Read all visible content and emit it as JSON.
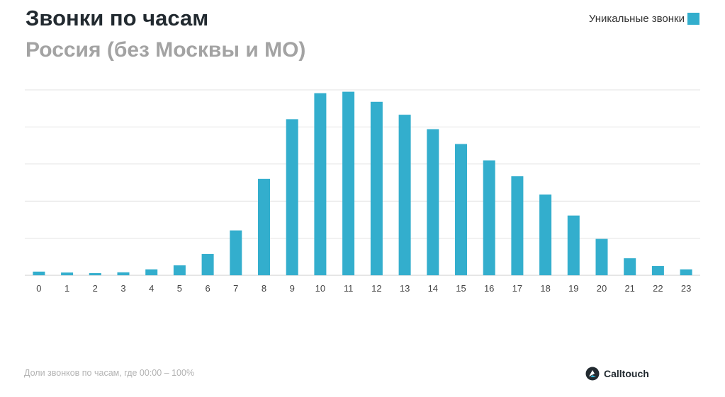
{
  "header": {
    "title": "Звонки по часам",
    "subtitle": "Россия (без Москвы и МО)"
  },
  "legend": {
    "label": "Уникальные звонки"
  },
  "footnote": "Доли звонков по часам, где 00:00 – 100%",
  "logo": {
    "text": "Calltouch",
    "icon": "calltouch-logo-icon"
  },
  "colors": {
    "bar": "#33aecd",
    "grid": "#e3e3e3",
    "axis": "#cccccc",
    "tick_label": "#444444"
  },
  "chart_data": {
    "type": "bar",
    "title": "Звонки по часам",
    "subtitle": "Россия (без Москвы и МО)",
    "xlabel": "",
    "ylabel": "",
    "categories": [
      "0",
      "1",
      "2",
      "3",
      "4",
      "5",
      "6",
      "7",
      "8",
      "9",
      "10",
      "11",
      "12",
      "13",
      "14",
      "15",
      "16",
      "17",
      "18",
      "19",
      "20",
      "21",
      "22",
      "23"
    ],
    "series": [
      {
        "name": "Уникальные звонки",
        "values": [
          100,
          75,
          60,
          80,
          160,
          270,
          575,
          1210,
          2600,
          4210,
          4910,
          4950,
          4680,
          4330,
          3940,
          3540,
          3100,
          2670,
          2180,
          1610,
          980,
          460,
          250,
          160
        ]
      }
    ],
    "ylim": [
      0,
      5000
    ],
    "y_gridlines": [
      0,
      1000,
      2000,
      3000,
      4000,
      5000
    ],
    "y_tick_labels_shown": false,
    "grid": true,
    "legend_position": "top-right"
  }
}
